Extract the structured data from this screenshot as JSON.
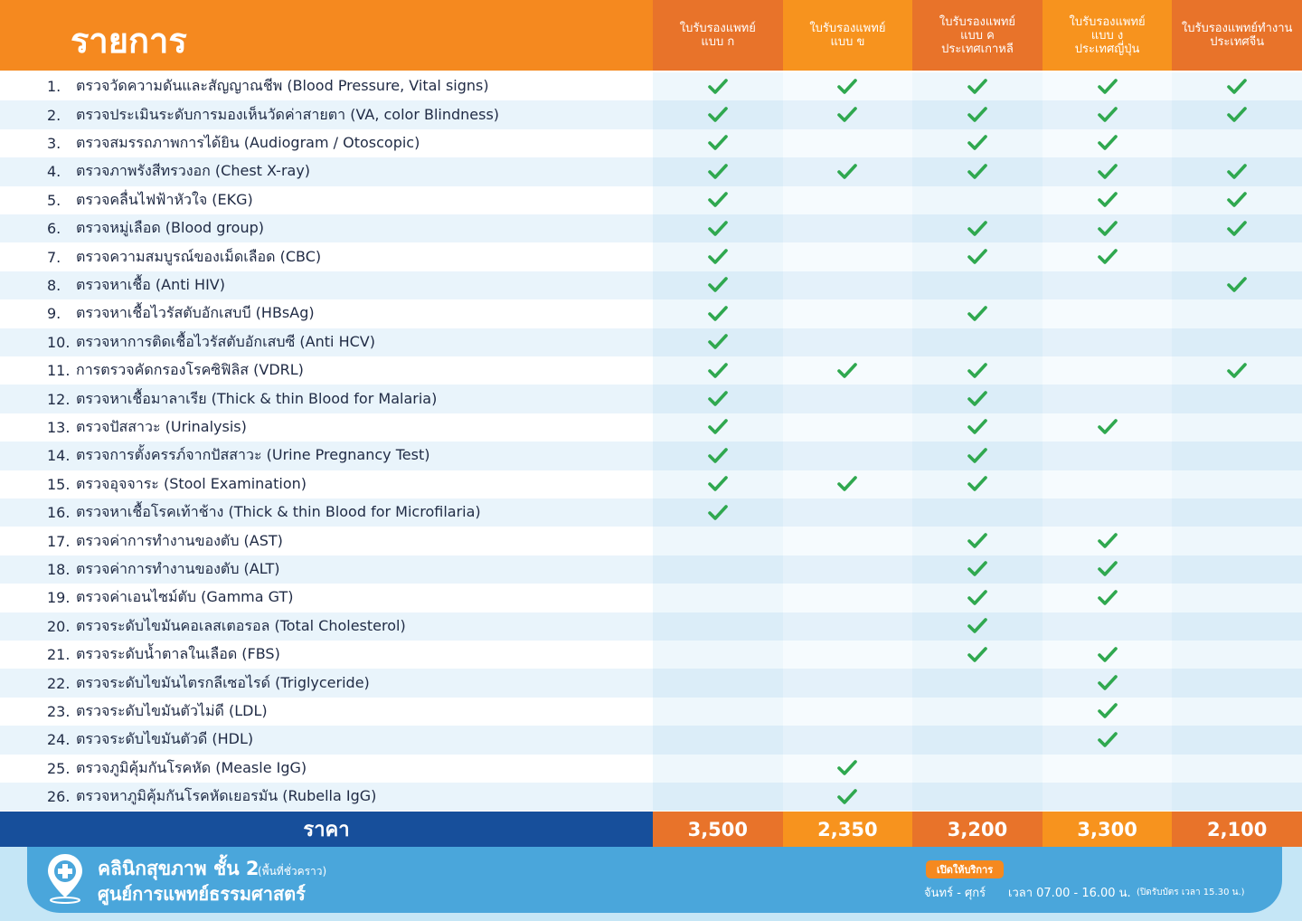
{
  "header": {
    "title": "รายการ",
    "columns": [
      [
        "ใบรับรองแพทย์",
        "แบบ ก"
      ],
      [
        "ใบรับรองแพทย์",
        "แบบ ข"
      ],
      [
        "ใบรับรองแพทย์",
        "แบบ ค",
        "ประเทศเกาหลี"
      ],
      [
        "ใบรับรองแพทย์",
        "แบบ ง",
        "ประเทศญี่ปุ่น"
      ],
      [
        "ใบรับรองแพทย์ทำงาน",
        "ประเทศจีน"
      ]
    ]
  },
  "table": {
    "rows": [
      {
        "no": "1.",
        "item": "ตรวจวัดความดันและสัญญาณชีพ (Blood Pressure, Vital signs)",
        "checks": [
          true,
          true,
          true,
          true,
          true
        ]
      },
      {
        "no": "2.",
        "item": "ตรวจประเมินระดับการมองเห็นวัดค่าสายตา (VA, color Blindness)",
        "checks": [
          true,
          true,
          true,
          true,
          true
        ]
      },
      {
        "no": "3.",
        "item": "ตรวจสมรรถภาพการได้ยิน (Audiogram / Otoscopic)",
        "checks": [
          true,
          false,
          true,
          true,
          false
        ]
      },
      {
        "no": "4.",
        "item": "ตรวจภาพรังสีทรวงอก (Chest X-ray)",
        "checks": [
          true,
          true,
          true,
          true,
          true
        ]
      },
      {
        "no": "5.",
        "item": "ตรวจคลื่นไฟฟ้าหัวใจ (EKG)",
        "checks": [
          true,
          false,
          false,
          true,
          true
        ]
      },
      {
        "no": "6.",
        "item": "ตรวจหมู่เลือด (Blood group)",
        "checks": [
          true,
          false,
          true,
          true,
          true
        ]
      },
      {
        "no": "7.",
        "item": "ตรวจความสมบูรณ์ของเม็ดเลือด (CBC)",
        "checks": [
          true,
          false,
          true,
          true,
          false
        ]
      },
      {
        "no": "8.",
        "item": "ตรวจหาเชื้อ (Anti HIV)",
        "checks": [
          true,
          false,
          false,
          false,
          true
        ]
      },
      {
        "no": "9.",
        "item": "ตรวจหาเชื้อไวรัสตับอักเสบบี (HBsAg)",
        "checks": [
          true,
          false,
          true,
          false,
          false
        ]
      },
      {
        "no": "10.",
        "item": "ตรวจหาการติดเชื้อไวรัสตับอักเสบซี (Anti HCV)",
        "checks": [
          true,
          false,
          false,
          false,
          false
        ]
      },
      {
        "no": "11.",
        "item": "การตรวจคัดกรองโรคซิฟิลิส (VDRL)",
        "checks": [
          true,
          true,
          true,
          false,
          true
        ]
      },
      {
        "no": "12.",
        "item": "ตรวจหาเชื้อมาลาเรีย (Thick & thin Blood for Malaria)",
        "checks": [
          true,
          false,
          true,
          false,
          false
        ]
      },
      {
        "no": "13.",
        "item": "ตรวจปัสสาวะ (Urinalysis)",
        "checks": [
          true,
          false,
          true,
          true,
          false
        ]
      },
      {
        "no": "14.",
        "item": "ตรวจการตั้งครรภ์จากปัสสาวะ (Urine Pregnancy Test)",
        "checks": [
          true,
          false,
          true,
          false,
          false
        ]
      },
      {
        "no": "15.",
        "item": "ตรวจอุจจาระ (Stool Examination)",
        "checks": [
          true,
          true,
          true,
          false,
          false
        ]
      },
      {
        "no": "16.",
        "item": "ตรวจหาเชื้อโรคเท้าช้าง (Thick & thin Blood for Microfilaria)",
        "checks": [
          true,
          false,
          false,
          false,
          false
        ]
      },
      {
        "no": "17.",
        "item": "ตรวจค่าการทำงานของตับ (AST)",
        "checks": [
          false,
          false,
          true,
          true,
          false
        ]
      },
      {
        "no": "18.",
        "item": "ตรวจค่าการทำงานของตับ (ALT)",
        "checks": [
          false,
          false,
          true,
          true,
          false
        ]
      },
      {
        "no": "19.",
        "item": "ตรวจค่าเอนไซม์ตับ (Gamma GT)",
        "checks": [
          false,
          false,
          true,
          true,
          false
        ]
      },
      {
        "no": "20.",
        "item": "ตรวจระดับไขมันคอเลสเตอรอล (Total Cholesterol)",
        "checks": [
          false,
          false,
          true,
          false,
          false
        ]
      },
      {
        "no": "21.",
        "item": "ตรวจระดับน้ำตาลในเลือด (FBS)",
        "checks": [
          false,
          false,
          true,
          true,
          false
        ]
      },
      {
        "no": "22.",
        "item": "ตรวจระดับไขมันไตรกลีเซอไรด์ (Triglyceride)",
        "checks": [
          false,
          false,
          false,
          true,
          false
        ]
      },
      {
        "no": "23.",
        "item": "ตรวจระดับไขมันตัวไม่ดี (LDL)",
        "checks": [
          false,
          false,
          false,
          true,
          false
        ]
      },
      {
        "no": "24.",
        "item": "ตรวจระดับไขมันตัวดี (HDL)",
        "checks": [
          false,
          false,
          false,
          true,
          false
        ]
      },
      {
        "no": "25.",
        "item": "ตรวจภูมิคุ้มกันโรคหัด (Measle IgG)",
        "checks": [
          false,
          true,
          false,
          false,
          false
        ]
      },
      {
        "no": "26.",
        "item": "ตรวจหาภูมิคุ้มกันโรคหัดเยอรมัน (Rubella IgG)",
        "checks": [
          false,
          true,
          false,
          false,
          false
        ]
      }
    ],
    "price_label": "ราคา",
    "prices": [
      "3,500",
      "2,350",
      "3,200",
      "3,300",
      "2,100"
    ]
  },
  "footer": {
    "clinic": "คลินิกสุขภาพ ชั้น 2",
    "clinic_note": "(พื้นที่ชั่วคราว)",
    "center": "ศูนย์การแพทย์ธรรมศาสตร์",
    "open_badge": "เปิดให้บริการ",
    "days": "จันทร์ - ศุกร์",
    "hours": "เวลา 07.00 - 16.00 น.",
    "hours_note": "(ปิดรับบัตร เวลา 15.30 น.)"
  }
}
